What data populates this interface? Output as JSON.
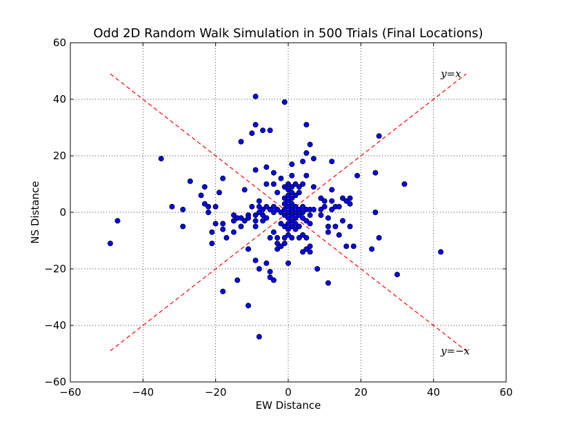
{
  "chart_data": {
    "type": "scatter",
    "title": "Odd 2D Random Walk Simulation in 500 Trials (Final Locations)",
    "xlabel": "EW Distance",
    "ylabel": "NS Distance",
    "xlim": [
      -60,
      60
    ],
    "ylim": [
      -60,
      60
    ],
    "xticks": [
      -60,
      -40,
      -20,
      0,
      20,
      40,
      60
    ],
    "yticks": [
      -60,
      -40,
      -20,
      0,
      20,
      40,
      60
    ],
    "xtick_labels": [
      "−60",
      "−40",
      "−20",
      "0",
      "20",
      "40",
      "60"
    ],
    "ytick_labels": [
      "−60",
      "−40",
      "−20",
      "0",
      "20",
      "40",
      "60"
    ],
    "grid": true,
    "point_color": "#0000ff",
    "line_color": "#ff0000",
    "lines": [
      {
        "label": "y=x",
        "x": [
          -49,
          49
        ],
        "y": [
          -49,
          49
        ]
      },
      {
        "label": "y=−x",
        "x": [
          -49,
          49
        ],
        "y": [
          49,
          -49
        ]
      }
    ],
    "annotations": [
      {
        "text": "y=x",
        "x": 42,
        "y": 49
      },
      {
        "text": "y=−x",
        "x": 42,
        "y": -49
      }
    ],
    "points": [
      [
        -49,
        -11
      ],
      [
        -47,
        -3
      ],
      [
        -35,
        19
      ],
      [
        -32,
        2
      ],
      [
        -29,
        1
      ],
      [
        -29,
        -5
      ],
      [
        -27,
        11
      ],
      [
        -24,
        6
      ],
      [
        -23,
        9
      ],
      [
        -23,
        3
      ],
      [
        -22,
        2
      ],
      [
        -22,
        0
      ],
      [
        -21,
        -7
      ],
      [
        -21,
        -11
      ],
      [
        -20,
        2
      ],
      [
        -20,
        -4
      ],
      [
        -19,
        7
      ],
      [
        -18,
        12
      ],
      [
        -18,
        -4
      ],
      [
        -18,
        -6
      ],
      [
        -18,
        -28
      ],
      [
        -17,
        -9
      ],
      [
        -15,
        -7
      ],
      [
        -15,
        -1
      ],
      [
        -15,
        -3
      ],
      [
        -14,
        -2
      ],
      [
        -14,
        -24
      ],
      [
        -13,
        25
      ],
      [
        -13,
        -2
      ],
      [
        -13,
        -5
      ],
      [
        -12,
        8
      ],
      [
        -12,
        -3
      ],
      [
        -11,
        -1
      ],
      [
        -11,
        -2
      ],
      [
        -11,
        -13
      ],
      [
        -11,
        -33
      ],
      [
        -10,
        28
      ],
      [
        -10,
        2
      ],
      [
        -9,
        41
      ],
      [
        -9,
        31
      ],
      [
        -9,
        15
      ],
      [
        -9,
        -1
      ],
      [
        -9,
        -3
      ],
      [
        -9,
        -5
      ],
      [
        -9,
        -17
      ],
      [
        -8,
        4
      ],
      [
        -8,
        2
      ],
      [
        -8,
        0
      ],
      [
        -8,
        -20
      ],
      [
        -8,
        -44
      ],
      [
        -7,
        29
      ],
      [
        -7,
        1
      ],
      [
        -7,
        -3
      ],
      [
        -7,
        -1
      ],
      [
        -6,
        16
      ],
      [
        -6,
        10
      ],
      [
        -6,
        2
      ],
      [
        -6,
        -2
      ],
      [
        -6,
        -18
      ],
      [
        -5,
        29
      ],
      [
        -5,
        1
      ],
      [
        -5,
        -9
      ],
      [
        -5,
        -21
      ],
      [
        -5,
        -23
      ],
      [
        -4,
        14
      ],
      [
        -4,
        10
      ],
      [
        -4,
        2
      ],
      [
        -4,
        0
      ],
      [
        -4,
        -7
      ],
      [
        -4,
        -24
      ],
      [
        -3,
        7
      ],
      [
        -3,
        1
      ],
      [
        -3,
        -9
      ],
      [
        -3,
        -11
      ],
      [
        -3,
        -13
      ],
      [
        -2,
        12
      ],
      [
        -2,
        0
      ],
      [
        -2,
        -4
      ],
      [
        -2,
        -12
      ],
      [
        -1,
        39
      ],
      [
        -1,
        9
      ],
      [
        -1,
        5
      ],
      [
        -1,
        3
      ],
      [
        -1,
        1
      ],
      [
        -1,
        -1
      ],
      [
        -1,
        -5
      ],
      [
        -1,
        -9
      ],
      [
        -1,
        -11
      ],
      [
        0,
        10
      ],
      [
        0,
        8
      ],
      [
        0,
        6
      ],
      [
        0,
        4
      ],
      [
        0,
        2
      ],
      [
        0,
        0
      ],
      [
        0,
        -2
      ],
      [
        0,
        -4
      ],
      [
        0,
        -6
      ],
      [
        0,
        -8
      ],
      [
        0,
        -18
      ],
      [
        1,
        17
      ],
      [
        1,
        13
      ],
      [
        1,
        9
      ],
      [
        1,
        7
      ],
      [
        1,
        5
      ],
      [
        1,
        3
      ],
      [
        1,
        1
      ],
      [
        1,
        -1
      ],
      [
        1,
        -3
      ],
      [
        1,
        -5
      ],
      [
        1,
        -9
      ],
      [
        2,
        10
      ],
      [
        2,
        6
      ],
      [
        2,
        2
      ],
      [
        2,
        0
      ],
      [
        2,
        -2
      ],
      [
        2,
        -4
      ],
      [
        2,
        -6
      ],
      [
        3,
        9
      ],
      [
        3,
        7
      ],
      [
        3,
        1
      ],
      [
        3,
        -1
      ],
      [
        3,
        -5
      ],
      [
        3,
        -9
      ],
      [
        4,
        18
      ],
      [
        4,
        10
      ],
      [
        4,
        2
      ],
      [
        4,
        0
      ],
      [
        4,
        -2
      ],
      [
        4,
        -8
      ],
      [
        4,
        -14
      ],
      [
        5,
        31
      ],
      [
        5,
        21
      ],
      [
        5,
        13
      ],
      [
        5,
        1
      ],
      [
        5,
        -3
      ],
      [
        5,
        -9
      ],
      [
        5,
        -13
      ],
      [
        6,
        24
      ],
      [
        6,
        1
      ],
      [
        6,
        -1
      ],
      [
        6,
        -4
      ],
      [
        6,
        -12
      ],
      [
        6,
        -14
      ],
      [
        7,
        19
      ],
      [
        7,
        9
      ],
      [
        7,
        1
      ],
      [
        8,
        -20
      ],
      [
        9,
        5
      ],
      [
        9,
        1
      ],
      [
        9,
        -1
      ],
      [
        10,
        4
      ],
      [
        10,
        2
      ],
      [
        11,
        -2
      ],
      [
        11,
        -5
      ],
      [
        11,
        -7
      ],
      [
        11,
        -25
      ],
      [
        12,
        18
      ],
      [
        12,
        8
      ],
      [
        12,
        4
      ],
      [
        12,
        1
      ],
      [
        13,
        2
      ],
      [
        13,
        -5
      ],
      [
        14,
        2
      ],
      [
        14,
        -8
      ],
      [
        15,
        5
      ],
      [
        15,
        -3
      ],
      [
        16,
        4
      ],
      [
        16,
        -12
      ],
      [
        17,
        5
      ],
      [
        17,
        3
      ],
      [
        17,
        -5
      ],
      [
        18,
        -12
      ],
      [
        19,
        13
      ],
      [
        23,
        -13
      ],
      [
        24,
        14
      ],
      [
        24,
        0
      ],
      [
        25,
        27
      ],
      [
        25,
        -9
      ],
      [
        30,
        -22
      ],
      [
        32,
        10
      ],
      [
        42,
        -14
      ]
    ]
  }
}
